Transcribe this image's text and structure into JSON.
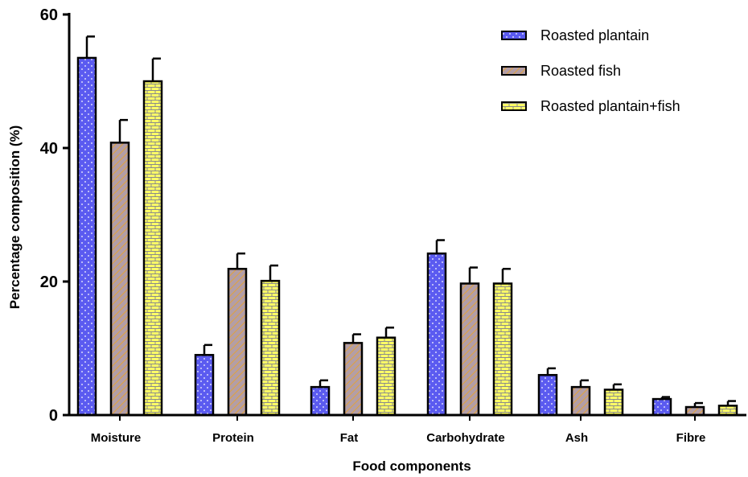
{
  "chart_data": {
    "type": "bar",
    "xlabel": "Food components",
    "ylabel": "Percentage composition (%)",
    "ylim": [
      0,
      60
    ],
    "yticks": [
      "0",
      "20",
      "40",
      "60"
    ],
    "categories": [
      "Moisture",
      "Protein",
      "Fat",
      "Carbohydrate",
      "Ash",
      "Fibre"
    ],
    "series": [
      {
        "name": "Roasted plantain",
        "values": [
          53.5,
          9.0,
          4.2,
          24.2,
          6.0,
          2.4
        ],
        "errors": [
          3.2,
          1.5,
          1.0,
          2.0,
          1.0,
          0.3
        ],
        "color": "#5b5bf0",
        "pattern": "dots"
      },
      {
        "name": "Roasted fish",
        "values": [
          40.8,
          21.9,
          10.8,
          19.7,
          4.2,
          1.2
        ],
        "errors": [
          3.4,
          2.3,
          1.3,
          2.4,
          1.0,
          0.6
        ],
        "color": "#b39ea6",
        "pattern": "diagonal-stripes"
      },
      {
        "name": "Roasted plantain+fish",
        "values": [
          50.0,
          20.1,
          11.6,
          19.7,
          3.8,
          1.4
        ],
        "errors": [
          3.4,
          2.3,
          1.5,
          2.2,
          0.8,
          0.7
        ],
        "color": "#ffff66",
        "pattern": "brick"
      }
    ],
    "legend_position": "top-right",
    "grid": false
  }
}
